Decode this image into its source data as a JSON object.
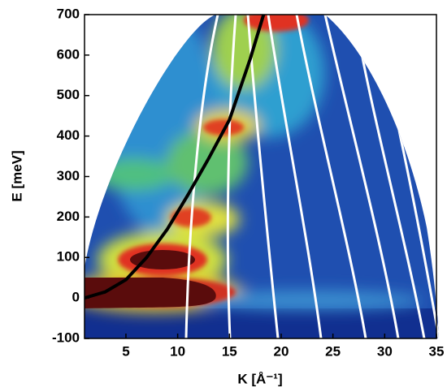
{
  "chart_data": {
    "type": "line",
    "x_label": "K [Å⁻¹]",
    "y_label": "E [meV]",
    "x": [
      1,
      3,
      5,
      7,
      9,
      11,
      13,
      15,
      17,
      18.3
    ],
    "series": [
      {
        "color": "#000000",
        "values": [
          0,
          15,
          45,
          100,
          170,
          255,
          345,
          440,
          590,
          700
        ]
      }
    ],
    "xlim": [
      1,
      35
    ],
    "ylim": [
      -100,
      700
    ],
    "xticks": [
      5,
      10,
      15,
      20,
      25,
      30,
      35
    ],
    "yticks": [
      -100,
      0,
      100,
      200,
      300,
      400,
      500,
      600,
      700
    ]
  }
}
